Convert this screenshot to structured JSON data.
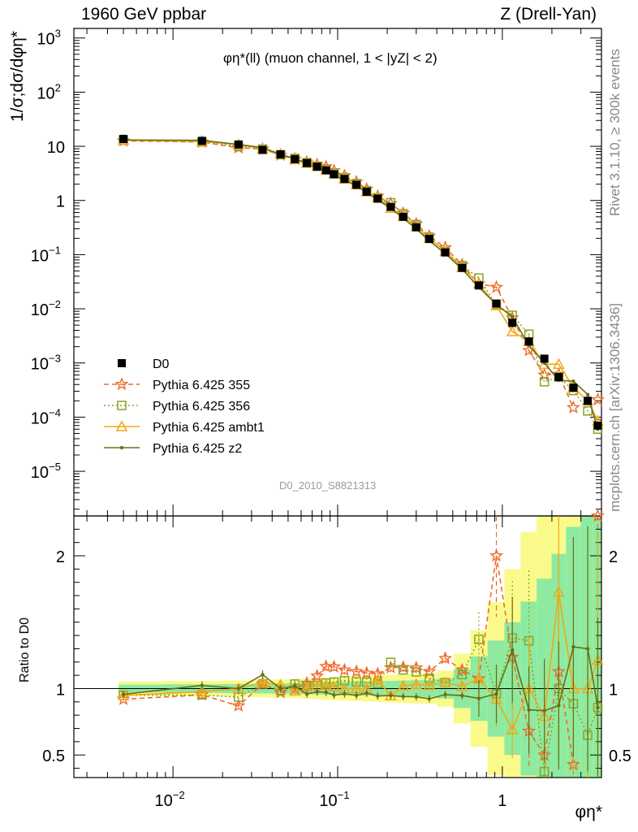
{
  "header": {
    "left": "1960 GeV ppbar",
    "right": "Z (Drell-Yan)"
  },
  "side_labels": {
    "rivet": "Rivet 3.1.10, ≥ 300k events",
    "mcplots": "mcplots.cern.ch [arXiv:1306.3436]"
  },
  "watermark": "D0_2010_S8821313",
  "chart_data": {
    "type": "scatter",
    "title": "φη*(ll) (muon channel, 1 < |yZ| < 2)",
    "xlabel": "φη*",
    "ylabel": "1/σ;dσ/dφη*",
    "ratio_ylabel": "Ratio to D0",
    "xscale": "log",
    "yscale": "log",
    "xlim": [
      0.0025,
      4.0
    ],
    "ylim": [
      1.5e-06,
      1500
    ],
    "ratio_ylim": [
      0.33,
      2.3
    ],
    "x_ticks": [
      "10^-2",
      "10^-1",
      "1"
    ],
    "y_ticks": [
      "10^-5",
      "10^-4",
      "10^-3",
      "10^-2",
      "10^-1",
      "1",
      "10",
      "10^2",
      "10^3"
    ],
    "ratio_ticks": [
      "0.5",
      "1",
      "2"
    ],
    "legend_position": "bottom-left",
    "x": [
      0.005,
      0.015,
      0.025,
      0.035,
      0.045,
      0.055,
      0.065,
      0.075,
      0.085,
      0.095,
      0.11,
      0.13,
      0.15,
      0.175,
      0.21,
      0.25,
      0.3,
      0.36,
      0.45,
      0.57,
      0.72,
      0.92,
      1.15,
      1.45,
      1.8,
      2.2,
      2.7,
      3.3,
      3.8
    ],
    "series": [
      {
        "name": "D0",
        "color": "#000000",
        "marker": "square",
        "values": [
          13.7,
          12.6,
          10.8,
          8.6,
          7.1,
          5.8,
          4.9,
          4.2,
          3.6,
          3.05,
          2.5,
          1.95,
          1.45,
          1.08,
          0.76,
          0.5,
          0.32,
          0.195,
          0.11,
          0.057,
          0.027,
          0.0125,
          0.0055,
          0.0025,
          0.0012,
          0.00055,
          0.00035,
          0.0002,
          7e-05
        ]
      },
      {
        "name": "Pythia 6.425 355",
        "color": "#ee6a2a",
        "marker": "star",
        "line": "dashed",
        "values": [
          12.6,
          12.0,
          9.4,
          8.9,
          6.9,
          5.8,
          5.1,
          4.6,
          4.2,
          3.55,
          2.85,
          2.2,
          1.62,
          1.2,
          0.88,
          0.58,
          0.37,
          0.22,
          0.135,
          0.065,
          0.029,
          0.025,
          0.0068,
          0.0017,
          0.0006,
          0.00062,
          0.00015,
          null,
          0.00021
        ]
      },
      {
        "name": "Pythia 6.425 356",
        "color": "#8da224",
        "marker": "open-square",
        "line": "dotted",
        "values": [
          13.0,
          12.0,
          10.1,
          8.9,
          7.0,
          6.0,
          5.0,
          4.3,
          3.75,
          3.2,
          2.65,
          2.05,
          1.52,
          1.12,
          0.91,
          0.57,
          0.36,
          0.21,
          0.115,
          0.063,
          0.037,
          0.012,
          0.0076,
          0.0034,
          0.00045,
          0.00055,
          0.00031,
          0.00013,
          6e-05
        ]
      },
      {
        "name": "Pythia 6.425 ambt1",
        "color": "#f2a715",
        "marker": "open-triangle",
        "line": "solid",
        "values": [
          13.0,
          12.3,
          10.8,
          9.0,
          7.3,
          5.7,
          4.9,
          4.3,
          3.7,
          3.1,
          2.5,
          1.95,
          1.45,
          1.15,
          0.72,
          0.51,
          0.33,
          0.2,
          0.115,
          0.058,
          0.029,
          0.0115,
          0.0038,
          0.0025,
          0.00095,
          0.00095,
          0.00035,
          0.0002,
          8.5e-05
        ]
      },
      {
        "name": "Pythia 6.425 z2",
        "color": "#6a6e16",
        "marker": "dot",
        "line": "solid",
        "values": [
          13.1,
          12.9,
          10.8,
          9.5,
          7.1,
          5.9,
          4.7,
          4.1,
          3.5,
          2.9,
          2.4,
          1.85,
          1.4,
          1.02,
          0.72,
          0.47,
          0.3,
          0.18,
          0.105,
          0.054,
          0.025,
          0.012,
          0.0071,
          0.0021,
          0.001,
          0.00048,
          0.00046,
          0.00026,
          6e-05
        ]
      }
    ]
  }
}
